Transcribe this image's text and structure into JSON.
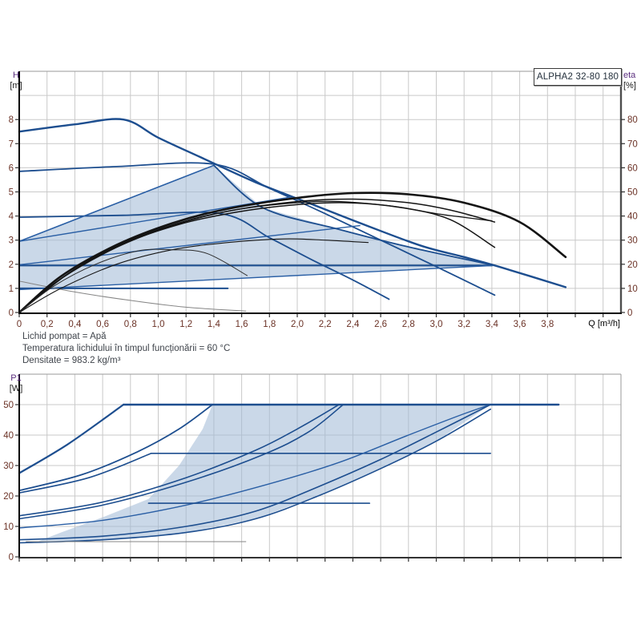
{
  "pump_model": "ALPHA2 32-80 180",
  "info_lines": [
    "Lichid pompat = Apă",
    "Temperatura lichidului în timpul funcționării = 60 °C",
    "Densitate = 983.2 kg/m³"
  ],
  "colors": {
    "curve_blue": "#1d4e8f",
    "curve_blue_light": "#2a5fa5",
    "curve_black": "#141414",
    "curve_gray": "#858585",
    "shade_fill": "rgba(158,184,214,0.55)",
    "grid": "#c9c9c9",
    "tick_text": "#6b3226",
    "quantity_text": "#5a2d7e"
  },
  "chart_data": [
    {
      "type": "line",
      "title": "ALPHA2 32-80 180",
      "y_left": {
        "label": "H",
        "unit": "[m]",
        "min": 0,
        "max": 10,
        "ticks": [
          0,
          1,
          2,
          3,
          4,
          5,
          6,
          7,
          8
        ]
      },
      "y_right": {
        "label": "eta",
        "unit": "[%]",
        "min": 0,
        "max": 100,
        "ticks": [
          0,
          10,
          20,
          30,
          40,
          50,
          60,
          70,
          80
        ]
      },
      "x": {
        "label": "Q [m³/h]",
        "min": 0,
        "max": 4.33,
        "grid_step": 0.2,
        "grid_max": 4.2,
        "ticks": [
          0,
          0.2,
          0.4,
          0.6,
          0.8,
          1.0,
          1.2,
          1.4,
          1.6,
          1.8,
          2.0,
          2.2,
          2.4,
          2.6,
          2.8,
          3.0,
          3.2,
          3.4,
          3.6,
          3.8
        ],
        "decimal_separator": ","
      },
      "shaded_region": [
        [
          0,
          2.95
        ],
        [
          1.4,
          6.1
        ],
        [
          1.75,
          4.35
        ],
        [
          2.3,
          3.45
        ],
        [
          2.8,
          2.72
        ],
        [
          3.42,
          1.95
        ],
        [
          0,
          0.95
        ]
      ],
      "series": [
        {
          "name": "max-speed-curve",
          "axis": "left",
          "color": "#1d4e8f",
          "width": 2.4,
          "smooth": true,
          "points": [
            [
              0,
              7.5
            ],
            [
              0.4,
              7.8
            ],
            [
              0.75,
              8.0
            ],
            [
              1.0,
              7.25
            ],
            [
              1.3,
              6.45
            ],
            [
              1.7,
              5.4
            ],
            [
              2.1,
              4.5
            ],
            [
              2.5,
              3.6
            ],
            [
              2.9,
              2.75
            ],
            [
              3.2,
              2.3
            ],
            [
              3.45,
              1.9
            ],
            [
              3.93,
              1.05
            ]
          ]
        },
        {
          "name": "fixed-speed-2-curve",
          "axis": "left",
          "color": "#1d4e8f",
          "width": 1.8,
          "smooth": true,
          "points": [
            [
              0,
              5.85
            ],
            [
              0.7,
              6.05
            ],
            [
              1.4,
              6.15
            ],
            [
              1.8,
              5.15
            ],
            [
              2.2,
              4.1
            ],
            [
              2.6,
              3.0
            ],
            [
              3.0,
              1.9
            ],
            [
              3.42,
              0.72
            ]
          ]
        },
        {
          "name": "fixed-speed-1-curve",
          "axis": "left",
          "color": "#1d4e8f",
          "width": 1.8,
          "smooth": true,
          "points": [
            [
              0,
              3.95
            ],
            [
              0.75,
              4.03
            ],
            [
              1.45,
              4.1
            ],
            [
              1.8,
              3.1
            ],
            [
              2.1,
              2.2
            ],
            [
              2.4,
              1.35
            ],
            [
              2.66,
              0.55
            ]
          ]
        },
        {
          "name": "const-pressure-2-line",
          "axis": "left",
          "color": "#1d4e8f",
          "width": 2.2,
          "smooth": false,
          "points": [
            [
              0,
              1.95
            ],
            [
              3.4,
              1.95
            ]
          ]
        },
        {
          "name": "const-pressure-1-line",
          "axis": "left",
          "color": "#1d4e8f",
          "width": 2.0,
          "smooth": false,
          "points": [
            [
              0,
              1.0
            ],
            [
              1.5,
              1.0
            ]
          ]
        },
        {
          "name": "duty-left-boundary",
          "axis": "left",
          "color": "#2a5fa5",
          "width": 1.6,
          "smooth": false,
          "points": [
            [
              0,
              2.95
            ],
            [
              1.4,
              6.1
            ]
          ]
        },
        {
          "name": "prop-pressure-3-line",
          "axis": "left",
          "color": "#2a5fa5",
          "width": 1.4,
          "smooth": false,
          "points": [
            [
              0,
              2.95
            ],
            [
              1.95,
              4.78
            ]
          ]
        },
        {
          "name": "prop-pressure-4-line",
          "axis": "left",
          "color": "#2a5fa5",
          "width": 1.4,
          "smooth": false,
          "points": [
            [
              0,
              1.98
            ],
            [
              2.45,
              3.6
            ]
          ]
        },
        {
          "name": "prop-pressure-2-line",
          "axis": "left",
          "color": "#2a5fa5",
          "width": 1.4,
          "smooth": false,
          "points": [
            [
              0,
              0.95
            ],
            [
              3.42,
              1.95
            ]
          ]
        },
        {
          "name": "duty-right-boundary",
          "axis": "left",
          "color": "#1d4e8f",
          "width": 1.8,
          "smooth": true,
          "points": [
            [
              1.4,
              6.1
            ],
            [
              1.75,
              4.35
            ],
            [
              2.3,
              3.45
            ],
            [
              2.8,
              2.72
            ],
            [
              3.42,
              1.95
            ]
          ]
        },
        {
          "name": "min-speed-curve",
          "axis": "left",
          "color": "#858585",
          "width": 1,
          "smooth": true,
          "points": [
            [
              0,
              1.3
            ],
            [
              0.4,
              0.85
            ],
            [
              0.8,
              0.5
            ],
            [
              1.2,
              0.22
            ],
            [
              1.63,
              0.06
            ]
          ]
        },
        {
          "name": "eta-max-curve",
          "axis": "right",
          "color": "#141414",
          "width": 2.6,
          "smooth": true,
          "points": [
            [
              0,
              0
            ],
            [
              0.3,
              15
            ],
            [
              0.7,
              28
            ],
            [
              1.1,
              37
            ],
            [
              1.5,
              43
            ],
            [
              2.0,
              47.5
            ],
            [
              2.4,
              49.5
            ],
            [
              2.8,
              49
            ],
            [
              3.2,
              45.5
            ],
            [
              3.6,
              37.5
            ],
            [
              3.93,
              23
            ]
          ]
        },
        {
          "name": "eta-curve-a",
          "axis": "right",
          "color": "#141414",
          "width": 1.5,
          "smooth": true,
          "points": [
            [
              0,
              0
            ],
            [
              0.3,
              14
            ],
            [
              0.7,
              27
            ],
            [
              1.1,
              36
            ],
            [
              1.5,
              42
            ],
            [
              2.0,
              46
            ],
            [
              2.4,
              47
            ],
            [
              2.8,
              45.5
            ],
            [
              3.1,
              42.5
            ],
            [
              3.42,
              37.5
            ]
          ]
        },
        {
          "name": "eta-curve-b",
          "axis": "right",
          "color": "#141414",
          "width": 1.5,
          "smooth": true,
          "points": [
            [
              0,
              0
            ],
            [
              0.35,
              16
            ],
            [
              0.75,
              28.5
            ],
            [
              1.15,
              36.5
            ],
            [
              1.55,
              41.5
            ],
            [
              1.95,
              44.5
            ],
            [
              2.35,
              45.5
            ],
            [
              2.75,
              43.5
            ],
            [
              3.1,
              38.5
            ],
            [
              3.42,
              27
            ]
          ]
        },
        {
          "name": "eta-curve-c",
          "axis": "right",
          "color": "#141414",
          "width": 1.3,
          "smooth": true,
          "points": [
            [
              0,
              0
            ],
            [
              0.4,
              18
            ],
            [
              0.8,
              30
            ],
            [
              1.2,
              38
            ],
            [
              1.6,
              43
            ],
            [
              2.0,
              45.5
            ],
            [
              2.3,
              46
            ],
            [
              2.7,
              44
            ],
            [
              3.0,
              41
            ],
            [
              3.4,
              38
            ]
          ]
        },
        {
          "name": "eta-low-curve-a",
          "axis": "right",
          "color": "#141414",
          "width": 1.1,
          "smooth": true,
          "points": [
            [
              0,
              0
            ],
            [
              0.3,
              10
            ],
            [
              0.7,
              20
            ],
            [
              1.1,
              26
            ],
            [
              1.5,
              29
            ],
            [
              1.9,
              30.5
            ],
            [
              2.2,
              30
            ],
            [
              2.51,
              29
            ]
          ]
        },
        {
          "name": "eta-low-curve-b",
          "axis": "right",
          "color": "#2b2b2b",
          "width": 1.0,
          "smooth": true,
          "points": [
            [
              0,
              0
            ],
            [
              0.25,
              11
            ],
            [
              0.55,
              20
            ],
            [
              0.85,
              25.5
            ],
            [
              1.1,
              26
            ],
            [
              1.35,
              24.5
            ],
            [
              1.64,
              15.3
            ]
          ]
        }
      ]
    },
    {
      "type": "line",
      "y_left": {
        "label": "P1",
        "unit": "[W]",
        "min": 0,
        "max": 60,
        "ticks": [
          0,
          10,
          20,
          30,
          40,
          50
        ]
      },
      "x": {
        "label": "",
        "min": 0,
        "max": 4.33,
        "grid_step": 0.2,
        "grid_max": 4.2,
        "ticks": []
      },
      "shaded_region": [
        [
          0.12,
          4.8
        ],
        [
          0.3,
          8
        ],
        [
          0.6,
          13
        ],
        [
          0.93,
          19
        ],
        [
          1.15,
          30
        ],
        [
          1.32,
          42
        ],
        [
          1.39,
          50
        ],
        [
          3.39,
          50
        ],
        [
          3.0,
          38
        ],
        [
          2.6,
          29
        ],
        [
          2.15,
          20
        ],
        [
          1.7,
          12.5
        ],
        [
          1.2,
          8
        ],
        [
          0.6,
          5.6
        ],
        [
          0.3,
          4.7
        ]
      ],
      "series": [
        {
          "name": "p1-max-rise",
          "axis": "left",
          "color": "#1d4e8f",
          "width": 2.2,
          "smooth": true,
          "points": [
            [
              0,
              27.5
            ],
            [
              0.35,
              37
            ],
            [
              0.75,
              50
            ]
          ]
        },
        {
          "name": "p1-50w-line",
          "axis": "left",
          "color": "#1d4e8f",
          "width": 2.4,
          "smooth": false,
          "points": [
            [
              0.75,
              50
            ],
            [
              3.88,
              50
            ]
          ]
        },
        {
          "name": "p1-duty-left-boundary",
          "axis": "left",
          "color": "#1d4e8f",
          "width": 1.8,
          "smooth": true,
          "points": [
            [
              0,
              21.8
            ],
            [
              0.45,
              27
            ],
            [
              0.85,
              34.5
            ],
            [
              1.15,
              42
            ],
            [
              1.39,
              50
            ]
          ]
        },
        {
          "name": "p1-34w-rise",
          "axis": "left",
          "color": "#1d4e8f",
          "width": 1.6,
          "smooth": true,
          "points": [
            [
              0,
              21
            ],
            [
              0.5,
              26
            ],
            [
              0.95,
              34
            ]
          ]
        },
        {
          "name": "p1-34w-line",
          "axis": "left",
          "color": "#1d4e8f",
          "width": 1.6,
          "smooth": false,
          "points": [
            [
              0.95,
              34
            ],
            [
              3.39,
              34
            ]
          ]
        },
        {
          "name": "p1-riser-a",
          "axis": "left",
          "color": "#1d4e8f",
          "width": 1.6,
          "smooth": true,
          "points": [
            [
              0,
              13.5
            ],
            [
              0.6,
              18
            ],
            [
              1.2,
              26
            ],
            [
              1.7,
              35
            ],
            [
              2.0,
              42
            ],
            [
              2.3,
              50
            ]
          ]
        },
        {
          "name": "p1-riser-b",
          "axis": "left",
          "color": "#1d4e8f",
          "width": 1.6,
          "smooth": true,
          "points": [
            [
              0,
              12.5
            ],
            [
              0.6,
              17
            ],
            [
              1.2,
              24.5
            ],
            [
              1.75,
              33.5
            ],
            [
              2.08,
              41
            ],
            [
              2.33,
              50
            ]
          ]
        },
        {
          "name": "p1-riser-c",
          "axis": "left",
          "color": "#2a5fa5",
          "width": 1.4,
          "smooth": true,
          "points": [
            [
              0,
              9.5
            ],
            [
              0.6,
              12
            ],
            [
              1.2,
              17
            ],
            [
              1.8,
              24
            ],
            [
              2.3,
              31
            ],
            [
              2.8,
              40
            ],
            [
              3.2,
              47
            ],
            [
              3.39,
              50
            ]
          ]
        },
        {
          "name": "p1-18w-line",
          "axis": "left",
          "color": "#1d4e8f",
          "width": 1.6,
          "smooth": false,
          "points": [
            [
              0.93,
              17.6
            ],
            [
              2.52,
              17.6
            ]
          ]
        },
        {
          "name": "p1-prop-a",
          "axis": "left",
          "color": "#1d4e8f",
          "width": 1.6,
          "smooth": true,
          "points": [
            [
              0,
              5.6
            ],
            [
              0.6,
              6.8
            ],
            [
              1.2,
              10
            ],
            [
              1.7,
              15
            ],
            [
              2.15,
              23
            ],
            [
              2.6,
              32
            ],
            [
              3.0,
              41
            ],
            [
              3.39,
              50
            ]
          ]
        },
        {
          "name": "p1-prop-b",
          "axis": "left",
          "color": "#1d4e8f",
          "width": 1.6,
          "smooth": true,
          "points": [
            [
              0,
              4.6
            ],
            [
              0.6,
              5.6
            ],
            [
              1.2,
              8
            ],
            [
              1.7,
              12.5
            ],
            [
              2.15,
              20
            ],
            [
              2.6,
              29
            ],
            [
              3.0,
              38
            ],
            [
              3.39,
              48.5
            ]
          ]
        },
        {
          "name": "p1-min-line",
          "axis": "left",
          "color": "#858585",
          "width": 1,
          "smooth": false,
          "points": [
            [
              0.05,
              5
            ],
            [
              1.63,
              5
            ]
          ]
        }
      ]
    }
  ]
}
